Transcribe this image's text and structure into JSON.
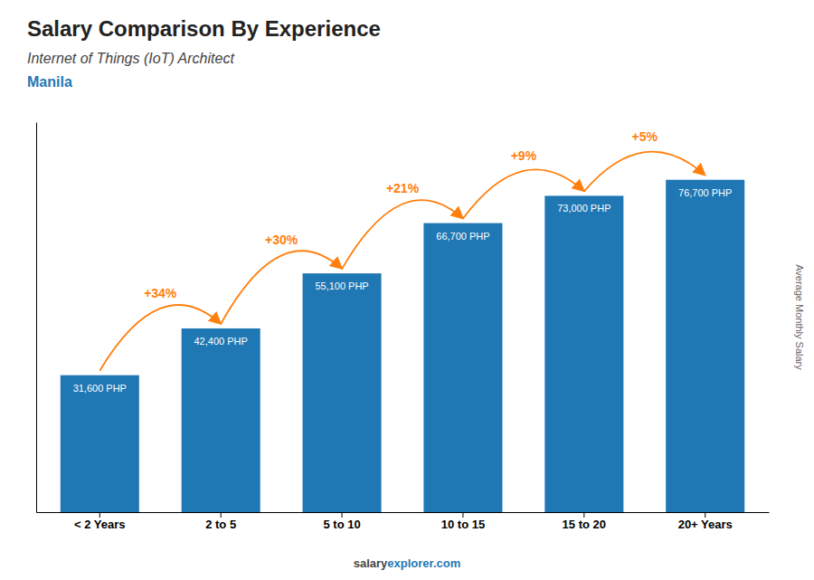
{
  "chart_data": {
    "type": "bar",
    "title": "Salary Comparison By Experience",
    "subtitle": "Internet of Things (IoT) Architect",
    "city": "Manila",
    "ylabel": "Average Monthly Salary",
    "categories": [
      "< 2 Years",
      "2 to 5",
      "5 to 10",
      "10 to 15",
      "15 to 20",
      "20+ Years"
    ],
    "values": [
      31600,
      42400,
      55100,
      66700,
      73000,
      76700
    ],
    "value_labels": [
      "31,600 PHP",
      "42,400 PHP",
      "55,100 PHP",
      "66,700 PHP",
      "73,000 PHP",
      "76,700 PHP"
    ],
    "data_labels": true,
    "annotations": [
      "+34%",
      "+30%",
      "+21%",
      "+9%",
      "+5%"
    ],
    "watermark": [
      "salary",
      "explorer.com"
    ],
    "ylim": [
      0,
      90000
    ],
    "tick_labels": "x",
    "grid": false
  }
}
